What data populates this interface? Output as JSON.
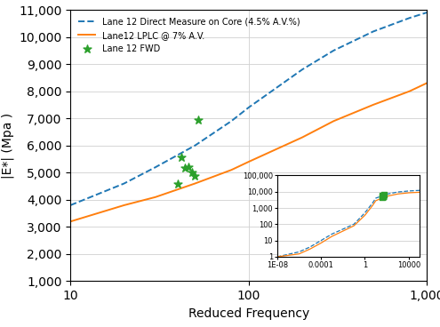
{
  "chart_data": [
    {
      "type": "line",
      "xlabel": "Reduced Frequency",
      "ylabel": "|E*| (Mpa )",
      "log": "x",
      "xlim": [
        10,
        1000
      ],
      "xticks": [
        10,
        100,
        {
          "value": 1000,
          "label": "1,000"
        }
      ],
      "ylim": [
        1000,
        11000
      ],
      "yticks": [
        {
          "value": 1000,
          "label": "1,000"
        },
        {
          "value": 2000,
          "label": "2,000"
        },
        {
          "value": 3000,
          "label": "3,000"
        },
        {
          "value": 4000,
          "label": "4,000"
        },
        {
          "value": 5000,
          "label": "5,000"
        },
        {
          "value": 6000,
          "label": "6,000"
        },
        {
          "value": 7000,
          "label": "7,000"
        },
        {
          "value": 8000,
          "label": "8,000"
        },
        {
          "value": 9000,
          "label": "9,000"
        },
        {
          "value": 10000,
          "label": "10,000"
        },
        {
          "value": 11000,
          "label": "11,000"
        }
      ],
      "grid": true,
      "legend": "upper left",
      "series": [
        {
          "name": "Lane 12 Direct Measure on Core (4.5% A.V.%)",
          "line_style": "dashed",
          "x": [
            10,
            20,
            30,
            50,
            80,
            100,
            200,
            300,
            500,
            800,
            1000
          ],
          "values": [
            3800,
            4600,
            5200,
            6000,
            6900,
            7400,
            8800,
            9500,
            10200,
            10700,
            10900
          ]
        },
        {
          "name": "Lane12 LPLC @ 7% A.V.",
          "line_style": "solid",
          "x": [
            10,
            20,
            30,
            50,
            80,
            100,
            200,
            300,
            500,
            800,
            1000
          ],
          "values": [
            3200,
            3800,
            4100,
            4600,
            5100,
            5400,
            6300,
            6900,
            7500,
            8000,
            8300
          ]
        },
        {
          "name": "Lane 12 FWD",
          "type": "scatter",
          "marker": "star",
          "x": [
            40,
            42,
            44,
            46,
            48,
            50,
            52
          ],
          "values": [
            4600,
            5580,
            5180,
            5210,
            5000,
            4870,
            6930
          ]
        }
      ]
    },
    {
      "type": "line",
      "log": true,
      "xlim": [
        1e-08,
        100000
      ],
      "xticks": [
        {
          "value": 1e-08,
          "label": "1E-08"
        },
        {
          "value": 0.0001,
          "label": "0.0001"
        },
        1,
        10000
      ],
      "ylim": [
        1,
        100000
      ],
      "yticks": [
        1,
        10,
        100,
        {
          "value": 1000,
          "label": "1,000"
        },
        {
          "value": 10000,
          "label": "10,000"
        },
        {
          "value": 100000,
          "label": "100,000"
        }
      ],
      "grid": "y",
      "series": [
        {
          "line_style": "dashed",
          "x": [
            1e-08,
            1e-06,
            1e-05,
            0.0001,
            0.001,
            0.01,
            0.1,
            1,
            5,
            10,
            100,
            1000,
            10000,
            100000
          ],
          "values": [
            1,
            2,
            4,
            10,
            25,
            50,
            100,
            500,
            2000,
            4000,
            7000,
            9500,
            11000,
            12000
          ]
        },
        {
          "line_style": "solid",
          "x": [
            1e-08,
            1e-06,
            1e-05,
            0.0001,
            0.001,
            0.01,
            0.1,
            1,
            5,
            10,
            100,
            1000,
            10000,
            100000
          ],
          "values": [
            1,
            1.5,
            3,
            7,
            18,
            38,
            80,
            350,
            1400,
            2800,
            5200,
            7200,
            8500,
            9200
          ]
        },
        {
          "type": "scatter",
          "marker": "square",
          "x": [
            40,
            42,
            44,
            46,
            48,
            50,
            52
          ],
          "values": [
            4600,
            5580,
            5180,
            5210,
            5000,
            4870,
            6930
          ]
        }
      ]
    }
  ]
}
